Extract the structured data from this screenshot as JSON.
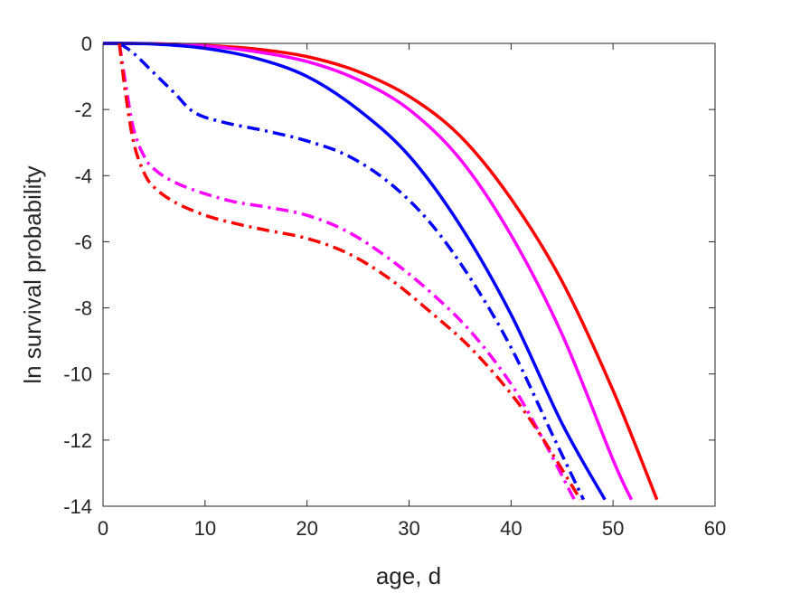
{
  "chart_data": {
    "type": "line",
    "xlabel": "age, d",
    "ylabel": "ln survival probability",
    "xlim": [
      0,
      60
    ],
    "ylim": [
      -14,
      0
    ],
    "xticks": [
      "0",
      "10",
      "20",
      "30",
      "40",
      "50",
      "60"
    ],
    "yticks": [
      "0",
      "-2",
      "-4",
      "-6",
      "-8",
      "-10",
      "-12",
      "-14"
    ],
    "grid": false,
    "legend": "none",
    "series": [
      {
        "color": "#ff0000",
        "style": "solid",
        "x": [
          0,
          5,
          10,
          15,
          20,
          25,
          30,
          35,
          40,
          45,
          50,
          54.3
        ],
        "y": [
          0,
          -0.01,
          -0.06,
          -0.17,
          -0.4,
          -0.85,
          -1.6,
          -2.8,
          -4.7,
          -7.2,
          -10.5,
          -13.8
        ]
      },
      {
        "color": "#ff00ff",
        "style": "solid",
        "x": [
          0,
          5,
          10,
          15,
          20,
          25,
          30,
          35,
          40,
          45,
          50,
          51.8
        ],
        "y": [
          0,
          -0.01,
          -0.08,
          -0.25,
          -0.55,
          -1.1,
          -2.0,
          -3.5,
          -5.8,
          -8.8,
          -12.6,
          -13.8
        ]
      },
      {
        "color": "#0000ff",
        "style": "solid",
        "x": [
          0,
          5,
          10,
          15,
          20,
          25,
          30,
          35,
          40,
          45,
          49.2
        ],
        "y": [
          0,
          -0.02,
          -0.15,
          -0.45,
          -1.0,
          -2.0,
          -3.4,
          -5.5,
          -8.2,
          -11.5,
          -13.8
        ]
      },
      {
        "color": "#0000ff",
        "style": "dashdot",
        "x": [
          1.6,
          3,
          5,
          7,
          9,
          12,
          16,
          20,
          24,
          28,
          32,
          36,
          40,
          44,
          47.1
        ],
        "y": [
          0,
          -0.3,
          -0.9,
          -1.5,
          -2.1,
          -2.4,
          -2.65,
          -2.95,
          -3.4,
          -4.2,
          -5.4,
          -7.1,
          -9.2,
          -11.8,
          -13.8
        ]
      },
      {
        "color": "#ff00ff",
        "style": "dashdot",
        "x": [
          1.6,
          2.2,
          3,
          4,
          5,
          7,
          10,
          13,
          16,
          20,
          24,
          28,
          32,
          36,
          40,
          43,
          46.2
        ],
        "y": [
          0,
          -1.2,
          -2.6,
          -3.4,
          -3.8,
          -4.2,
          -4.55,
          -4.8,
          -4.95,
          -5.2,
          -5.7,
          -6.5,
          -7.5,
          -8.7,
          -10.3,
          -11.9,
          -13.8
        ]
      },
      {
        "color": "#ff0000",
        "style": "dashdot",
        "x": [
          1.6,
          2.2,
          3,
          4,
          5,
          7,
          10,
          13,
          16,
          20,
          24,
          28,
          32,
          36,
          40,
          43,
          46.8
        ],
        "y": [
          0,
          -1.5,
          -3.0,
          -3.9,
          -4.35,
          -4.8,
          -5.2,
          -5.45,
          -5.65,
          -5.9,
          -6.35,
          -7.1,
          -8.1,
          -9.2,
          -10.6,
          -11.9,
          -13.8
        ]
      }
    ]
  }
}
